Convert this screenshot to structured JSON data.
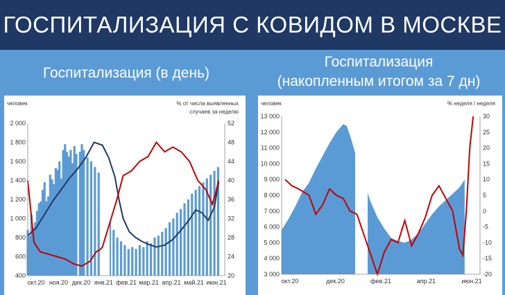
{
  "header": {
    "title": "ГОСПИТАЛИЗАЦИЯ С КОВИДОМ В МОСКВЕ"
  },
  "subtitles": {
    "left": "Госпитализация (в день)",
    "right_line1": "Госпитализация",
    "right_line2": "(накопленным итогом за 7 дн)"
  },
  "colors": {
    "header_bg": "#1f3864",
    "page_bg": "#5b9bd5",
    "bars": "#5b9bd5",
    "navy_line": "#1f3864",
    "red_line": "#c00000"
  },
  "chart_data": [
    {
      "type": "bar",
      "ylabel": "человек",
      "y2label": "% от числа выявленных случаев за неделю",
      "y2label_line1": "% от числа выявленных",
      "y2label_line2": "случаев за неделю",
      "ylim": [
        400,
        2000
      ],
      "y2lim": [
        20,
        52
      ],
      "yticks": [
        "2 000",
        "1 800",
        "1 600",
        "1 400",
        "1 200",
        "1 000",
        "800",
        "600",
        "400"
      ],
      "y2ticks": [
        "52",
        "48",
        "44",
        "40",
        "36",
        "32",
        "28",
        "24",
        "20"
      ],
      "xticks": [
        "окт.20",
        "ноя.20",
        "дек.20",
        "янв.21",
        "фев.21",
        "мар.21",
        "апр.21",
        "май.21",
        "июн.21"
      ],
      "grid": false,
      "bars_daily": [
        [
          0,
          880
        ],
        [
          0.05,
          820
        ],
        [
          0.1,
          1040
        ],
        [
          0.15,
          900
        ],
        [
          0.2,
          960
        ],
        [
          0.25,
          1080
        ],
        [
          0.3,
          1160
        ],
        [
          0.35,
          1180
        ],
        [
          0.4,
          1300
        ],
        [
          0.45,
          1380
        ],
        [
          0.5,
          1180
        ],
        [
          0.55,
          1230
        ],
        [
          0.6,
          1460
        ],
        [
          0.65,
          1410
        ],
        [
          0.7,
          1360
        ],
        [
          0.75,
          1530
        ],
        [
          0.8,
          1510
        ],
        [
          0.85,
          1600
        ],
        [
          0.9,
          1420
        ],
        [
          0.95,
          1720
        ],
        [
          1.0,
          1780
        ],
        [
          1.05,
          1700
        ],
        [
          1.1,
          1650
        ],
        [
          1.15,
          1720
        ],
        [
          1.2,
          1580
        ],
        [
          1.25,
          1760
        ],
        [
          1.3,
          1680
        ],
        [
          1.4,
          1700
        ],
        [
          1.45,
          1780
        ],
        [
          1.5,
          1720
        ],
        [
          1.6,
          1640
        ],
        [
          1.7,
          1600
        ],
        [
          1.8,
          1540
        ],
        [
          1.9,
          1480
        ],
        [
          2.0,
          1280
        ],
        [
          2.1,
          1100
        ],
        [
          2.2,
          980
        ],
        [
          2.3,
          880
        ],
        [
          2.4,
          800
        ],
        [
          2.5,
          760
        ],
        [
          2.6,
          720
        ],
        [
          2.7,
          680
        ],
        [
          2.8,
          700
        ],
        [
          2.9,
          680
        ],
        [
          3.0,
          720
        ],
        [
          3.1,
          700
        ],
        [
          3.2,
          760
        ],
        [
          3.3,
          740
        ],
        [
          3.4,
          800
        ],
        [
          3.5,
          820
        ],
        [
          3.6,
          860
        ],
        [
          3.7,
          900
        ],
        [
          3.8,
          960
        ],
        [
          3.9,
          1000
        ],
        [
          4.0,
          1060
        ],
        [
          4.1,
          1100
        ],
        [
          4.2,
          1160
        ],
        [
          4.3,
          1200
        ],
        [
          4.4,
          1260
        ],
        [
          4.5,
          1300
        ],
        [
          4.6,
          1340
        ],
        [
          4.7,
          1380
        ],
        [
          4.8,
          1420
        ],
        [
          4.9,
          1460
        ],
        [
          5.0,
          1500
        ],
        [
          5.1,
          1540
        ]
      ],
      "series": [
        {
          "name": "",
          "axis": "left",
          "color": "#1f3864",
          "points": [
            [
              0,
              820
            ],
            [
              0.4,
              900
            ],
            [
              0.8,
              1040
            ],
            [
              1.2,
              1180
            ],
            [
              1.6,
              1300
            ],
            [
              2.0,
              1420
            ],
            [
              2.4,
              1520
            ],
            [
              2.8,
              1640
            ],
            [
              3.2,
              1800
            ],
            [
              3.6,
              1770
            ],
            [
              3.9,
              1640
            ],
            [
              4.2,
              1440
            ],
            [
              4.4,
              1200
            ],
            [
              4.6,
              1000
            ],
            [
              4.9,
              860
            ],
            [
              5.2,
              800
            ],
            [
              5.5,
              760
            ],
            [
              5.8,
              730
            ],
            [
              6.2,
              700
            ],
            [
              6.6,
              720
            ],
            [
              7.0,
              780
            ],
            [
              7.4,
              880
            ],
            [
              7.8,
              990
            ],
            [
              8.1,
              1090
            ],
            [
              8.4,
              1060
            ],
            [
              8.7,
              980
            ],
            [
              9.0,
              1120
            ],
            [
              9.2,
              1380
            ]
          ]
        },
        {
          "name": "",
          "axis": "right",
          "color": "#c00000",
          "points": [
            [
              0,
              40
            ],
            [
              0.3,
              27
            ],
            [
              0.6,
              25
            ],
            [
              1.0,
              24.5
            ],
            [
              1.4,
              24
            ],
            [
              1.8,
              23.5
            ],
            [
              2.2,
              22.5
            ],
            [
              2.6,
              22
            ],
            [
              3.0,
              23
            ],
            [
              3.3,
              25
            ],
            [
              3.5,
              25.5
            ],
            [
              3.6,
              26
            ],
            [
              4.3,
              36
            ],
            [
              4.6,
              41
            ],
            [
              5.0,
              42
            ],
            [
              5.4,
              44
            ],
            [
              5.8,
              45
            ],
            [
              6.2,
              48
            ],
            [
              6.6,
              46
            ],
            [
              7.0,
              47
            ],
            [
              7.4,
              46
            ],
            [
              7.8,
              44
            ],
            [
              8.2,
              40
            ],
            [
              8.6,
              38
            ],
            [
              8.9,
              35
            ],
            [
              9.1,
              38
            ],
            [
              9.2,
              40
            ]
          ]
        }
      ]
    },
    {
      "type": "bar",
      "ylabel": "человек",
      "y2label": "% неделя / неделя",
      "ylim": [
        3000,
        13000
      ],
      "y2lim": [
        -20,
        30
      ],
      "yticks": [
        "13 000",
        "12 000",
        "11 000",
        "10 000",
        "9 000",
        "8 000",
        "7 000",
        "6 000",
        "5 000",
        "4 000",
        "3 000"
      ],
      "y2ticks": [
        "30",
        "25",
        "20",
        "15",
        "10",
        "5",
        "0",
        "-5",
        "-10",
        "-15",
        "-20"
      ],
      "xticks": [
        "окт.20",
        "дек.20",
        "фев.21",
        "апр.21",
        "июн.21"
      ],
      "grid": false,
      "series": [
        {
          "name": "",
          "axis": "left",
          "color": "#5b9bd5",
          "kind": "area",
          "points": [
            [
              0,
              5800
            ],
            [
              0.2,
              6500
            ],
            [
              0.4,
              7300
            ],
            [
              0.6,
              8200
            ],
            [
              0.8,
              8800
            ],
            [
              1.0,
              9700
            ],
            [
              1.2,
              10500
            ],
            [
              1.4,
              11300
            ],
            [
              1.6,
              12000
            ],
            [
              1.8,
              12500
            ],
            [
              1.9,
              12400
            ],
            [
              2.0,
              11800
            ],
            [
              2.2,
              10300
            ],
            [
              2.4,
              8900
            ],
            [
              2.6,
              7600
            ],
            [
              2.8,
              6600
            ],
            [
              3.0,
              5900
            ],
            [
              3.2,
              5300
            ],
            [
              3.4,
              5100
            ],
            [
              3.6,
              5000
            ],
            [
              3.8,
              5200
            ],
            [
              4.0,
              5600
            ],
            [
              4.2,
              6200
            ],
            [
              4.4,
              6800
            ],
            [
              4.6,
              7300
            ],
            [
              4.8,
              7700
            ],
            [
              5.0,
              8100
            ],
            [
              5.2,
              8500
            ],
            [
              5.35,
              9000
            ]
          ]
        },
        {
          "name": "",
          "axis": "right",
          "color": "#c00000",
          "points": [
            [
              0.1,
              10
            ],
            [
              0.3,
              8
            ],
            [
              0.5,
              7
            ],
            [
              0.8,
              5
            ],
            [
              1.0,
              -1
            ],
            [
              1.2,
              2
            ],
            [
              1.4,
              7
            ],
            [
              1.6,
              5
            ],
            [
              1.8,
              4
            ],
            [
              2.0,
              0
            ],
            [
              2.2,
              -1
            ],
            [
              2.8,
              -20
            ],
            [
              3.0,
              -13
            ],
            [
              3.2,
              -9
            ],
            [
              3.4,
              -10
            ],
            [
              3.6,
              -3
            ],
            [
              3.8,
              -11
            ],
            [
              4.0,
              -7
            ],
            [
              4.2,
              -2
            ],
            [
              4.4,
              5
            ],
            [
              4.6,
              8
            ],
            [
              4.8,
              4
            ],
            [
              5.0,
              0
            ],
            [
              5.2,
              -12
            ],
            [
              5.3,
              -14
            ],
            [
              5.4,
              0
            ],
            [
              5.5,
              20
            ],
            [
              5.6,
              30
            ]
          ]
        }
      ]
    }
  ]
}
